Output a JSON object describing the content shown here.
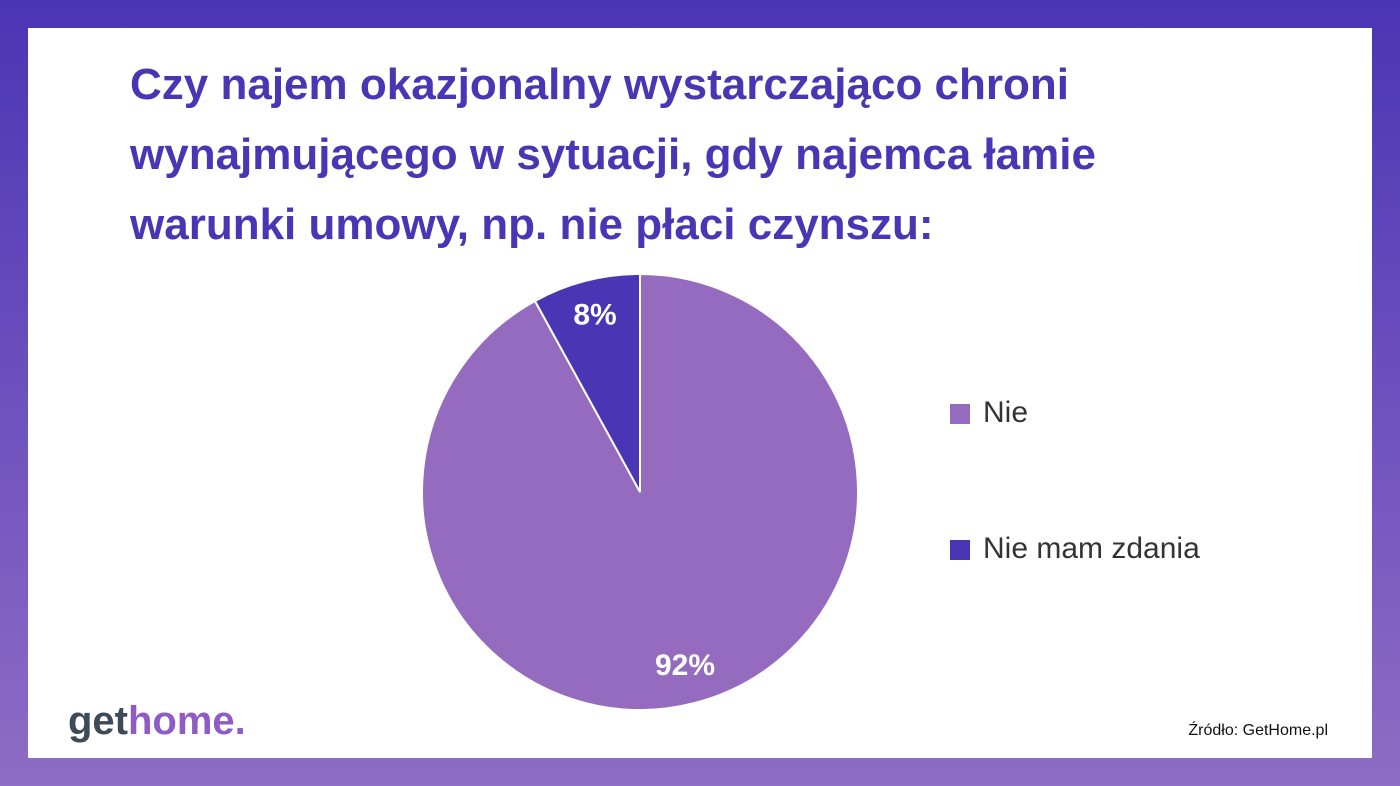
{
  "chart_data": {
    "type": "pie",
    "title": "Czy najem okazjonalny wystarczająco chroni wynajmującego w sytuacji, gdy najemca łamie warunki umowy, np. nie płaci czynszu:",
    "categories": [
      "Nie",
      "Nie mam zdania"
    ],
    "values": [
      92,
      8
    ],
    "value_labels": [
      "92%",
      "8%"
    ],
    "colors": [
      "#946bbf",
      "#4a35b5"
    ],
    "source": "Źródło: GetHome.pl",
    "logo": [
      "get",
      "home."
    ]
  }
}
